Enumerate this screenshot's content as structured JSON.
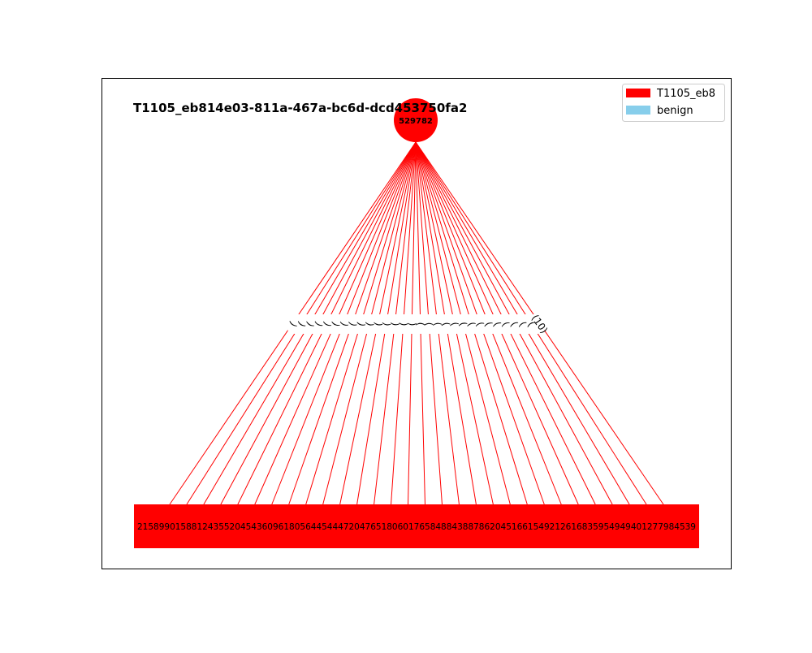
{
  "title": "T1105_eb814e03-811a-467a-bc6d-dcd453750fa2",
  "root": {
    "label": "529782"
  },
  "legend": [
    {
      "label": "T1105_eb8",
      "color": "#ff0000"
    },
    {
      "label": "benign",
      "color": "#87ceeb"
    }
  ],
  "edge_color": "#ff0000",
  "node_color": "#ff0000",
  "edge_label_readable": "(10)",
  "leaf_row_text": "2158990158812435520454360961805644544472047651806017658488438878620451661549212616835954949401277984539",
  "leaf_row_start": "2158",
  "leaf_row_end": "539",
  "leaf_count": 30
}
